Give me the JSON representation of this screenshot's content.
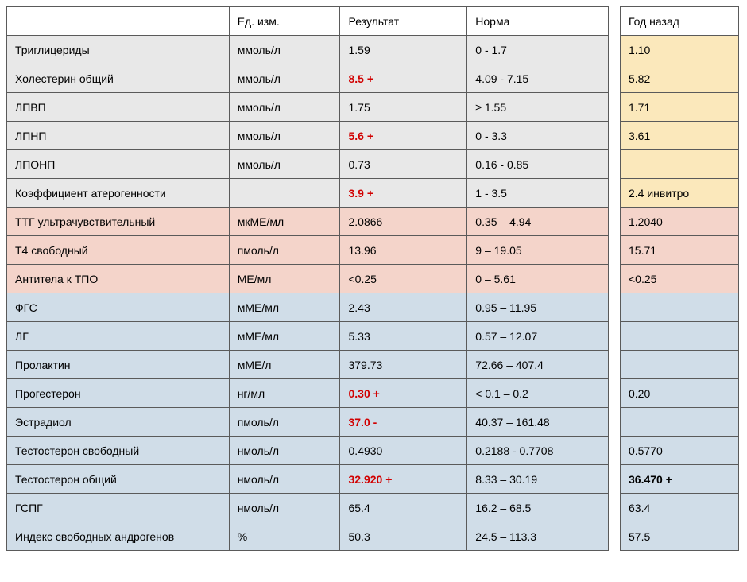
{
  "headers": {
    "name": "",
    "unit": "Ед. изм.",
    "result": "Результат",
    "norm": "Норма",
    "prev": "Год назад"
  },
  "groups": {
    "gray": "#e8e8e8",
    "yellow": "#fbe8bb",
    "pink": "#f4d4ca",
    "blue": "#d0dde8",
    "white": "#ffffff"
  },
  "rows": [
    {
      "name": "Триглицериды",
      "unit": "ммоль/л",
      "result": "1.59",
      "norm": "0 - 1.7",
      "group": "gray",
      "prev": "1.10",
      "prev_group": "yellow"
    },
    {
      "name": "Холестерин общий",
      "unit": "ммоль/л",
      "result": "8.5 +",
      "abn": true,
      "norm": "4.09 - 7.15",
      "group": "gray",
      "prev": "5.82",
      "prev_group": "yellow"
    },
    {
      "name": "ЛПВП",
      "unit": "ммоль/л",
      "result": "1.75",
      "norm": "≥ 1.55",
      "group": "gray",
      "prev": "1.71",
      "prev_group": "yellow"
    },
    {
      "name": "ЛПНП",
      "unit": "ммоль/л",
      "result": "5.6 +",
      "abn": true,
      "norm": "0 - 3.3",
      "group": "gray",
      "prev": "3.61",
      "prev_group": "yellow"
    },
    {
      "name": "ЛПОНП",
      "unit": "ммоль/л",
      "result": "0.73",
      "norm": "0.16 - 0.85",
      "group": "gray",
      "prev": "",
      "prev_group": "yellow"
    },
    {
      "name": "Коэффициент атерогенности",
      "unit": "",
      "result": "3.9 +",
      "abn": true,
      "norm": "1 - 3.5",
      "group": "gray",
      "prev": "2.4   инвитро",
      "prev_group": "yellow"
    },
    {
      "name": "ТТГ ультрачувствительный",
      "unit": "мкМЕ/мл",
      "result": "2.0866",
      "norm": "0.35 – 4.94",
      "group": "pink",
      "prev": "1.2040",
      "prev_group": "pink"
    },
    {
      "name": "Т4 свободный",
      "unit": "пмоль/л",
      "result": "13.96",
      "norm": "9 – 19.05",
      "group": "pink",
      "prev": "15.71",
      "prev_group": "pink"
    },
    {
      "name": "Антитела к ТПО",
      "unit": "МЕ/мл",
      "result": "<0.25",
      "norm": "0 – 5.61",
      "group": "pink",
      "prev": "<0.25",
      "prev_group": "pink"
    },
    {
      "name": "ФГС",
      "unit": "мМЕ/мл",
      "result": "2.43",
      "norm": "0.95 – 11.95",
      "group": "blue",
      "prev": "",
      "prev_group": "blue"
    },
    {
      "name": "ЛГ",
      "unit": "мМЕ/мл",
      "result": "5.33",
      "norm": "0.57 – 12.07",
      "group": "blue",
      "prev": "",
      "prev_group": "blue"
    },
    {
      "name": "Пролактин",
      "unit": "мМЕ/л",
      "result": "379.73",
      "norm": "72.66 – 407.4",
      "group": "blue",
      "prev": "",
      "prev_group": "blue"
    },
    {
      "name": "Прогестерон",
      "unit": "нг/мл",
      "result": "0.30 +",
      "abn": true,
      "norm": "< 0.1 – 0.2",
      "group": "blue",
      "prev": "0.20",
      "prev_group": "blue"
    },
    {
      "name": "Эстрадиол",
      "unit": "пмоль/л",
      "result": "37.0 -",
      "abn": true,
      "norm": "40.37 – 161.48",
      "group": "blue",
      "prev": "",
      "prev_group": "blue"
    },
    {
      "name": "Тестостерон свободный",
      "unit": "нмоль/л",
      "result": "0.4930",
      "norm": "0.2188 - 0.7708",
      "group": "blue",
      "prev": "0.5770",
      "prev_group": "blue"
    },
    {
      "name": "Тестостерон общий",
      "unit": "нмоль/л",
      "result": "32.920 +",
      "abn": true,
      "norm": "8.33 – 30.19",
      "group": "blue",
      "prev": "36.470 +",
      "prev_bold": true,
      "prev_group": "blue"
    },
    {
      "name": "ГСПГ",
      "unit": "нмоль/л",
      "result": "65.4",
      "norm": "16.2 –  68.5",
      "group": "blue",
      "prev": "63.4",
      "prev_group": "blue"
    },
    {
      "name": "Индекс свободных андрогенов",
      "unit": "%",
      "result": "50.3",
      "norm": "24.5 – 113.3",
      "group": "blue",
      "prev": "57.5",
      "prev_group": "blue"
    }
  ]
}
